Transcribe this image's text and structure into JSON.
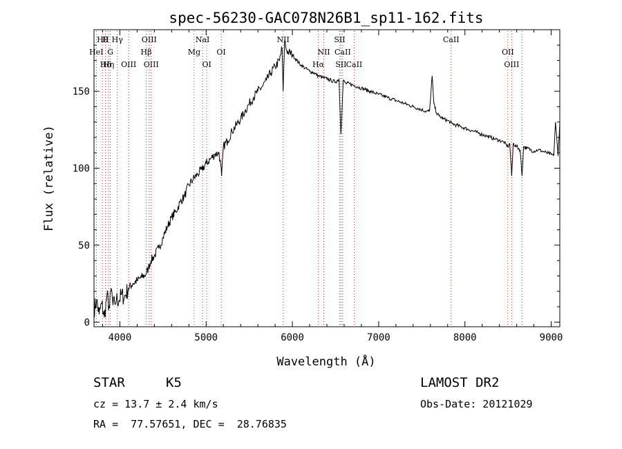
{
  "chart_data": {
    "type": "line",
    "title": "spec-56230-GAC078N26B1_sp11-162.fits",
    "xlabel": "Wavelength (Å)",
    "ylabel": "Flux (relative)",
    "xlim": [
      3700,
      9100
    ],
    "ylim": [
      -3,
      190
    ],
    "x_ticks": [
      4000,
      5000,
      6000,
      7000,
      8000,
      9000
    ],
    "y_ticks": [
      0,
      50,
      100,
      150
    ],
    "x_tick_labels": [
      "4000",
      "5000",
      "6000",
      "7000",
      "8000",
      "9000"
    ],
    "y_tick_labels": [
      "0",
      "50",
      "100",
      "150"
    ],
    "grid": false,
    "legend": "none",
    "series": [
      {
        "x": [
          3700,
          3730,
          3760,
          3790,
          3820,
          3850,
          3880,
          3900,
          3920,
          3940,
          3960,
          3990,
          4020,
          4050,
          4100,
          4150,
          4200,
          4250,
          4300,
          4330,
          4360,
          4400,
          4450,
          4500,
          4550,
          4600,
          4650,
          4700,
          4750,
          4800,
          4850,
          4900,
          4950,
          5000,
          5050,
          5100,
          5150,
          5180,
          5200,
          5250,
          5300,
          5350,
          5400,
          5450,
          5500,
          5550,
          5600,
          5650,
          5700,
          5750,
          5800,
          5850,
          5880,
          5893,
          5910,
          5930,
          5960,
          6000,
          6050,
          6100,
          6150,
          6200,
          6250,
          6300,
          6350,
          6400,
          6450,
          6500,
          6540,
          6563,
          6590,
          6620,
          6660,
          6700,
          6750,
          6800,
          6850,
          6900,
          6950,
          7000,
          7050,
          7100,
          7150,
          7200,
          7250,
          7300,
          7350,
          7400,
          7450,
          7500,
          7550,
          7590,
          7620,
          7640,
          7670,
          7700,
          7750,
          7800,
          7850,
          7900,
          7950,
          8000,
          8050,
          8100,
          8150,
          8200,
          8250,
          8300,
          8350,
          8400,
          8450,
          8498,
          8520,
          8542,
          8560,
          8600,
          8640,
          8662,
          8680,
          8720,
          8760,
          8800,
          8850,
          8900,
          8950,
          9000,
          9030,
          9050,
          9080,
          9100
        ],
        "y": [
          8,
          14,
          5,
          12,
          3,
          17,
          9,
          22,
          11,
          12,
          15,
          14,
          18,
          16,
          22,
          25,
          27,
          29,
          31,
          35,
          40,
          43,
          48,
          55,
          62,
          68,
          72,
          78,
          82,
          89,
          93,
          96,
          99,
          103,
          106,
          109,
          110,
          95,
          114,
          118,
          124,
          128,
          132,
          137,
          142,
          146,
          150,
          153,
          157,
          162,
          166,
          170,
          178,
          150,
          183,
          177,
          175,
          174,
          170,
          167,
          165,
          163,
          162,
          160,
          159,
          158,
          157,
          156,
          158,
          122,
          157,
          155,
          155,
          154,
          153,
          152,
          151,
          150,
          149,
          148,
          147,
          146,
          145,
          144,
          143,
          142,
          141,
          140,
          139,
          138,
          137,
          137,
          160,
          142,
          136,
          134,
          132,
          131,
          129,
          128,
          127,
          126,
          125,
          124,
          123,
          122,
          121,
          120,
          119,
          118,
          117,
          114,
          116,
          95,
          116,
          114,
          112,
          95,
          114,
          113,
          112,
          111,
          112,
          111,
          110,
          109,
          108,
          130,
          108,
          130
        ]
      }
    ],
    "line_labels": [
      {
        "x": 3798,
        "text": "Hθ",
        "row": 0
      },
      {
        "x": 3835,
        "text": "H",
        "row": 0
      },
      {
        "x": 3970,
        "text": "Hγ",
        "row": 0
      },
      {
        "x": 4340,
        "text": "OIII",
        "row": 0
      },
      {
        "x": 4959,
        "text": "NaI",
        "row": 0
      },
      {
        "x": 5893,
        "text": "NII",
        "row": 0
      },
      {
        "x": 6548,
        "text": "SII",
        "row": 0
      },
      {
        "x": 7840,
        "text": "CaII",
        "row": 0
      },
      {
        "x": 8498,
        "text": "OII",
        "row": 1
      },
      {
        "x": 3727,
        "text": "HeI",
        "row": 1
      },
      {
        "x": 3889,
        "text": "G",
        "row": 1
      },
      {
        "x": 4305,
        "text": "Hβ",
        "row": 1
      },
      {
        "x": 4861,
        "text": "Mg",
        "row": 1
      },
      {
        "x": 5175,
        "text": "OI",
        "row": 1
      },
      {
        "x": 6364,
        "text": "NII",
        "row": 1
      },
      {
        "x": 6583,
        "text": "CaII",
        "row": 1
      },
      {
        "x": 8542,
        "text": "OIII",
        "row": 2
      },
      {
        "x": 3869,
        "text": "Hη",
        "row": 2
      },
      {
        "x": 3835,
        "text": "Hδ",
        "row": 2
      },
      {
        "x": 4102,
        "text": "OIII",
        "row": 2
      },
      {
        "x": 4363,
        "text": "OIII",
        "row": 2
      },
      {
        "x": 5007,
        "text": "OI",
        "row": 2
      },
      {
        "x": 6300,
        "text": "Hα",
        "row": 2
      },
      {
        "x": 6563,
        "text": "SII",
        "row": 2
      },
      {
        "x": 6716,
        "text": "CaII",
        "row": 2
      },
      {
        "x": 8662,
        "text": "",
        "row": 2
      }
    ]
  },
  "info": {
    "object_class": "STAR",
    "subclass": "K5",
    "survey": "LAMOST DR2",
    "cz": "cz = 13.7 ± 2.4 km/s",
    "obs_date": "Obs-Date: 20121029",
    "coords": "RA =  77.57651, DEC =  28.76835"
  }
}
